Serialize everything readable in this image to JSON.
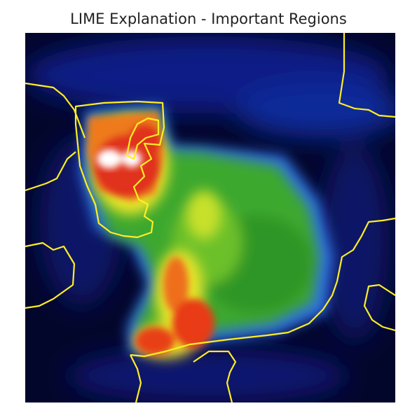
{
  "figure": {
    "title": "LIME Explanation - Important Regions"
  },
  "image": {
    "subject": "thermal-style saliency heatmap of an animal sitting, overlaid with yellow superpixel boundaries",
    "colormap": [
      "#03062b",
      "#0a1a8a",
      "#1e58d8",
      "#2e9a2a",
      "#8fd022",
      "#f0ea28",
      "#f08a18",
      "#e01a10",
      "#ffffff"
    ],
    "boundary_color": "#ffee22"
  }
}
